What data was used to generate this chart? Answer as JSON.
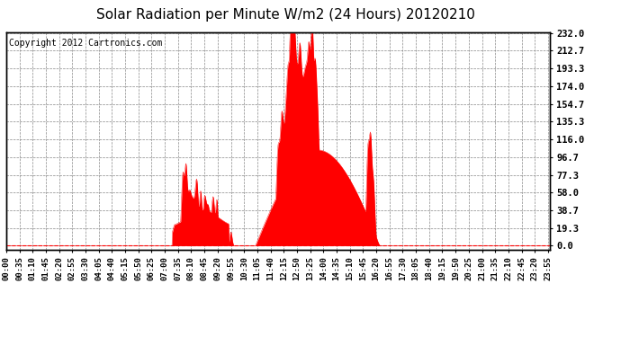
{
  "title": "Solar Radiation per Minute W/m2 (24 Hours) 20120210",
  "copyright_text": "Copyright 2012 Cartronics.com",
  "yticks": [
    0.0,
    19.3,
    38.7,
    58.0,
    77.3,
    96.7,
    116.0,
    135.3,
    154.7,
    174.0,
    193.3,
    212.7,
    232.0
  ],
  "ymax": 232.0,
  "ymin": 0.0,
  "fill_color": "#FF0000",
  "line_color": "#FF0000",
  "bg_color": "#FFFFFF",
  "grid_color": "#AAAAAA",
  "dashed_line_color": "#FF0000",
  "title_fontsize": 11,
  "copyright_fontsize": 7,
  "tick_label_fontsize": 6.5,
  "ytick_label_fontsize": 7.5
}
